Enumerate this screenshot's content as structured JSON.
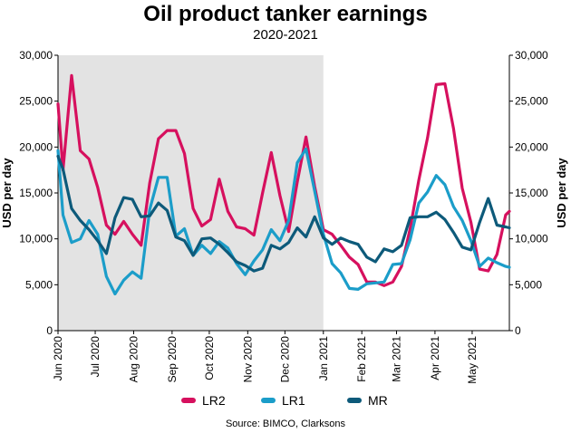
{
  "chart_data": {
    "type": "line",
    "title": "Oil product tanker earnings",
    "subtitle": "2020-2021",
    "ylabel": "USD per day",
    "ylabel_right": "USD per day",
    "ylim": [
      0,
      30000
    ],
    "yticks": [
      0,
      5000,
      10000,
      15000,
      20000,
      25000,
      30000
    ],
    "ytick_labels": [
      "0",
      "5,000",
      "10,000",
      "15,000",
      "20,000",
      "25,000",
      "30,000"
    ],
    "x_range": [
      "2020-06-01",
      "2021-05-31"
    ],
    "xticks": [
      "2020-06-01",
      "2020-07-01",
      "2020-08-01",
      "2020-09-01",
      "2020-10-01",
      "2020-11-01",
      "2020-12-01",
      "2021-01-01",
      "2021-02-01",
      "2021-03-01",
      "2021-04-01",
      "2021-05-01"
    ],
    "xtick_labels": [
      "Jun 2020",
      "Jul 2020",
      "Aug 2020",
      "Sep 2020",
      "Oct 2020",
      "Nov 2020",
      "Dec 2020",
      "Jan 2021",
      "Feb 2021",
      "Mar 2021",
      "Apr 2021",
      "May 2021"
    ],
    "shaded_range": [
      "2020-06-01",
      "2021-01-01"
    ],
    "shade_color": "#e3e3e3",
    "grid": false,
    "legend_position": "bottom",
    "series": [
      {
        "name": "LR2",
        "color": "#d6105e",
        "points": [
          [
            "2020-06-01",
            24700
          ],
          [
            "2020-06-05",
            17500
          ],
          [
            "2020-06-12",
            27800
          ],
          [
            "2020-06-19",
            19600
          ],
          [
            "2020-06-26",
            18700
          ],
          [
            "2020-07-03",
            15600
          ],
          [
            "2020-07-10",
            11500
          ],
          [
            "2020-07-17",
            10500
          ],
          [
            "2020-07-24",
            11900
          ],
          [
            "2020-07-31",
            10500
          ],
          [
            "2020-08-07",
            9300
          ],
          [
            "2020-08-14",
            16100
          ],
          [
            "2020-08-21",
            20900
          ],
          [
            "2020-08-28",
            21800
          ],
          [
            "2020-09-04",
            21800
          ],
          [
            "2020-09-11",
            19300
          ],
          [
            "2020-09-18",
            13300
          ],
          [
            "2020-09-25",
            11400
          ],
          [
            "2020-10-02",
            12100
          ],
          [
            "2020-10-09",
            16500
          ],
          [
            "2020-10-16",
            13000
          ],
          [
            "2020-10-23",
            11300
          ],
          [
            "2020-10-30",
            11100
          ],
          [
            "2020-11-06",
            10400
          ],
          [
            "2020-11-13",
            15000
          ],
          [
            "2020-11-20",
            19400
          ],
          [
            "2020-11-27",
            14700
          ],
          [
            "2020-12-04",
            10800
          ],
          [
            "2020-12-11",
            16200
          ],
          [
            "2020-12-18",
            21100
          ],
          [
            "2020-12-25",
            15700
          ],
          [
            "2021-01-01",
            11000
          ],
          [
            "2021-01-08",
            10500
          ],
          [
            "2021-01-15",
            9300
          ],
          [
            "2021-01-22",
            8000
          ],
          [
            "2021-01-29",
            7200
          ],
          [
            "2021-02-05",
            5300
          ],
          [
            "2021-02-12",
            5300
          ],
          [
            "2021-02-19",
            4900
          ],
          [
            "2021-02-26",
            5300
          ],
          [
            "2021-03-05",
            7000
          ],
          [
            "2021-03-12",
            11100
          ],
          [
            "2021-03-19",
            16400
          ],
          [
            "2021-03-26",
            21000
          ],
          [
            "2021-04-02",
            26800
          ],
          [
            "2021-04-09",
            26900
          ],
          [
            "2021-04-16",
            22000
          ],
          [
            "2021-04-23",
            15500
          ],
          [
            "2021-04-30",
            11800
          ],
          [
            "2021-05-07",
            6700
          ],
          [
            "2021-05-14",
            6500
          ],
          [
            "2021-05-21",
            8300
          ],
          [
            "2021-05-28",
            12600
          ],
          [
            "2021-05-31",
            13000
          ]
        ]
      },
      {
        "name": "LR1",
        "color": "#1b9dc9",
        "points": [
          [
            "2020-06-01",
            19600
          ],
          [
            "2020-06-05",
            12600
          ],
          [
            "2020-06-12",
            9600
          ],
          [
            "2020-06-19",
            10000
          ],
          [
            "2020-06-26",
            12000
          ],
          [
            "2020-07-03",
            10500
          ],
          [
            "2020-07-10",
            5900
          ],
          [
            "2020-07-17",
            4000
          ],
          [
            "2020-07-24",
            5500
          ],
          [
            "2020-07-31",
            6400
          ],
          [
            "2020-08-07",
            5700
          ],
          [
            "2020-08-14",
            13200
          ],
          [
            "2020-08-21",
            16700
          ],
          [
            "2020-08-28",
            16700
          ],
          [
            "2020-09-04",
            10300
          ],
          [
            "2020-09-11",
            11100
          ],
          [
            "2020-09-18",
            8200
          ],
          [
            "2020-09-25",
            9300
          ],
          [
            "2020-10-02",
            8400
          ],
          [
            "2020-10-09",
            9700
          ],
          [
            "2020-10-16",
            9000
          ],
          [
            "2020-10-23",
            7300
          ],
          [
            "2020-10-30",
            6100
          ],
          [
            "2020-11-06",
            7600
          ],
          [
            "2020-11-13",
            8800
          ],
          [
            "2020-11-20",
            11000
          ],
          [
            "2020-11-27",
            9800
          ],
          [
            "2020-12-04",
            12000
          ],
          [
            "2020-12-11",
            18300
          ],
          [
            "2020-12-18",
            19800
          ],
          [
            "2020-12-25",
            15200
          ],
          [
            "2021-01-01",
            10500
          ],
          [
            "2021-01-08",
            7300
          ],
          [
            "2021-01-15",
            6300
          ],
          [
            "2021-01-22",
            4600
          ],
          [
            "2021-01-29",
            4500
          ],
          [
            "2021-02-05",
            5100
          ],
          [
            "2021-02-12",
            5200
          ],
          [
            "2021-02-19",
            5300
          ],
          [
            "2021-02-26",
            7200
          ],
          [
            "2021-03-05",
            7300
          ],
          [
            "2021-03-12",
            9900
          ],
          [
            "2021-03-19",
            13900
          ],
          [
            "2021-03-26",
            15100
          ],
          [
            "2021-04-02",
            16900
          ],
          [
            "2021-04-09",
            15900
          ],
          [
            "2021-04-16",
            13500
          ],
          [
            "2021-04-23",
            12000
          ],
          [
            "2021-04-30",
            9800
          ],
          [
            "2021-05-07",
            7000
          ],
          [
            "2021-05-14",
            7900
          ],
          [
            "2021-05-21",
            7400
          ],
          [
            "2021-05-28",
            7000
          ],
          [
            "2021-05-31",
            6900
          ]
        ]
      },
      {
        "name": "MR",
        "color": "#0d5a7a",
        "points": [
          [
            "2020-06-01",
            19000
          ],
          [
            "2020-06-05",
            17600
          ],
          [
            "2020-06-12",
            13300
          ],
          [
            "2020-06-19",
            12000
          ],
          [
            "2020-06-26",
            11000
          ],
          [
            "2020-07-03",
            9800
          ],
          [
            "2020-07-10",
            8400
          ],
          [
            "2020-07-17",
            12300
          ],
          [
            "2020-07-24",
            14500
          ],
          [
            "2020-07-31",
            14300
          ],
          [
            "2020-08-07",
            12400
          ],
          [
            "2020-08-14",
            12500
          ],
          [
            "2020-08-21",
            13900
          ],
          [
            "2020-08-28",
            13100
          ],
          [
            "2020-09-04",
            10200
          ],
          [
            "2020-09-11",
            9800
          ],
          [
            "2020-09-18",
            8200
          ],
          [
            "2020-09-25",
            10000
          ],
          [
            "2020-10-02",
            10100
          ],
          [
            "2020-10-09",
            9400
          ],
          [
            "2020-10-16",
            8500
          ],
          [
            "2020-10-23",
            7500
          ],
          [
            "2020-10-30",
            7100
          ],
          [
            "2020-11-06",
            6500
          ],
          [
            "2020-11-13",
            6800
          ],
          [
            "2020-11-20",
            9300
          ],
          [
            "2020-11-27",
            8900
          ],
          [
            "2020-12-04",
            9600
          ],
          [
            "2020-12-11",
            11200
          ],
          [
            "2020-12-18",
            10200
          ],
          [
            "2020-12-25",
            12400
          ],
          [
            "2021-01-01",
            10100
          ],
          [
            "2021-01-08",
            9400
          ],
          [
            "2021-01-15",
            10100
          ],
          [
            "2021-01-22",
            9700
          ],
          [
            "2021-01-29",
            9400
          ],
          [
            "2021-02-05",
            8000
          ],
          [
            "2021-02-12",
            7500
          ],
          [
            "2021-02-19",
            8900
          ],
          [
            "2021-02-26",
            8600
          ],
          [
            "2021-03-05",
            9300
          ],
          [
            "2021-03-12",
            12300
          ],
          [
            "2021-03-19",
            12400
          ],
          [
            "2021-03-26",
            12400
          ],
          [
            "2021-04-02",
            12900
          ],
          [
            "2021-04-09",
            12100
          ],
          [
            "2021-04-16",
            10700
          ],
          [
            "2021-04-23",
            9100
          ],
          [
            "2021-04-30",
            8800
          ],
          [
            "2021-05-07",
            11800
          ],
          [
            "2021-05-14",
            14400
          ],
          [
            "2021-05-21",
            11500
          ],
          [
            "2021-05-28",
            11300
          ],
          [
            "2021-05-31",
            11200
          ]
        ]
      }
    ]
  },
  "source": "Source: BIMCO, Clarksons"
}
